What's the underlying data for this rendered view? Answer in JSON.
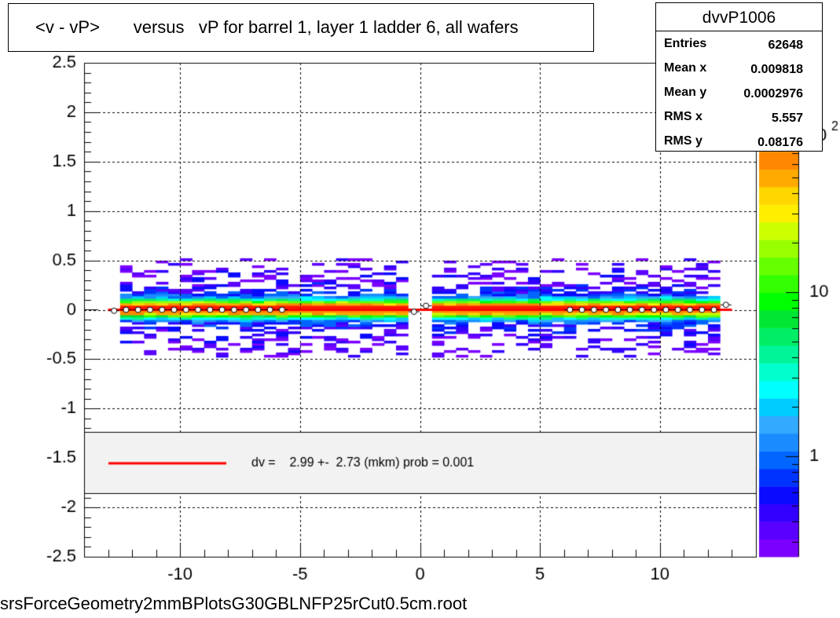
{
  "title": "<v - vP>       versus   vP for barrel 1, layer 1 ladder 6, all wafers",
  "stats": {
    "name": "dvvP1006",
    "rows": [
      {
        "key": "Entries",
        "value": "62648"
      },
      {
        "key": "Mean x",
        "value": "0.009818"
      },
      {
        "key": "Mean y",
        "value": "0.0002976"
      },
      {
        "key": "RMS x",
        "value": "5.557"
      },
      {
        "key": "RMS y",
        "value": "0.08176"
      }
    ]
  },
  "footer_filename": "srsForceGeometry2mmBPlotsG30GBLNFP25rCut0.5cm.root",
  "legend": {
    "text": "dv =    2.99 +-  2.73 (mkm) prob = 0.001",
    "line_color": "#ff0000"
  },
  "colorbar": {
    "scale": "log",
    "tick_labels": [
      "1",
      "10"
    ],
    "exponent_label": "2",
    "colors": [
      "#7b00ff",
      "#5a00ff",
      "#3300ff",
      "#0a0aff",
      "#0033ff",
      "#0066ff",
      "#1a8cff",
      "#33aaff",
      "#00ccff",
      "#00ffff",
      "#00ffcc",
      "#00f599",
      "#00ee66",
      "#00e633",
      "#00ff00",
      "#33ff00",
      "#66ff00",
      "#99ff00",
      "#ccff00",
      "#ffee00",
      "#ffd700",
      "#ffaa00",
      "#ff8800"
    ]
  },
  "chart_data": {
    "type": "heatmap",
    "title": "<v - vP>       versus   vP for barrel 1, layer 1 ladder 6, all wafers",
    "xlim": [
      -14,
      14
    ],
    "ylim": [
      -2.5,
      2.5
    ],
    "x_ticks": [
      -10,
      -5,
      0,
      5,
      10
    ],
    "x_tick_labels": [
      "-10",
      "-5",
      "0",
      "5",
      "10"
    ],
    "y_ticks": [
      -2.5,
      -2,
      -1.5,
      -1,
      -0.5,
      0,
      0.5,
      1,
      1.5,
      2,
      2.5
    ],
    "y_tick_labels": [
      "-2.5",
      "-2",
      "-1.5",
      "-1",
      "-0.5",
      "0",
      "0.5",
      "1",
      "1.5",
      "2",
      "2.5"
    ],
    "grid": true,
    "occupied_x_range": [
      -12.5,
      12.5
    ],
    "occupied_y_range": [
      -0.48,
      0.5
    ],
    "core_y_range": [
      -0.1,
      0.1
    ],
    "gap_x": [
      -0.2,
      0.2
    ],
    "profile_points": {
      "x": [
        -12.75,
        -12.25,
        -11.75,
        -11.25,
        -10.75,
        -10.25,
        -9.75,
        -9.25,
        -8.75,
        -8.25,
        -7.75,
        -7.25,
        -6.75,
        -6.25,
        -5.75,
        -0.25,
        0.25,
        6.25,
        6.75,
        7.25,
        7.75,
        8.25,
        8.75,
        9.25,
        9.75,
        10.25,
        10.75,
        11.25,
        11.75,
        12.25,
        12.75
      ],
      "y": [
        -0.01,
        0.0,
        0.0,
        0.0,
        0.0,
        0.0,
        0.0,
        0.0,
        0.0,
        0.0,
        0.0,
        0.0,
        0.0,
        0.0,
        0.0,
        -0.02,
        0.04,
        0.0,
        0.0,
        0.0,
        0.0,
        0.0,
        0.0,
        0.0,
        0.0,
        0.0,
        0.0,
        0.0,
        0.0,
        0.0,
        0.05
      ]
    },
    "fit_line": {
      "x": [
        -13,
        13
      ],
      "y": [
        0.0,
        0.0
      ],
      "color": "#ff0000"
    }
  }
}
